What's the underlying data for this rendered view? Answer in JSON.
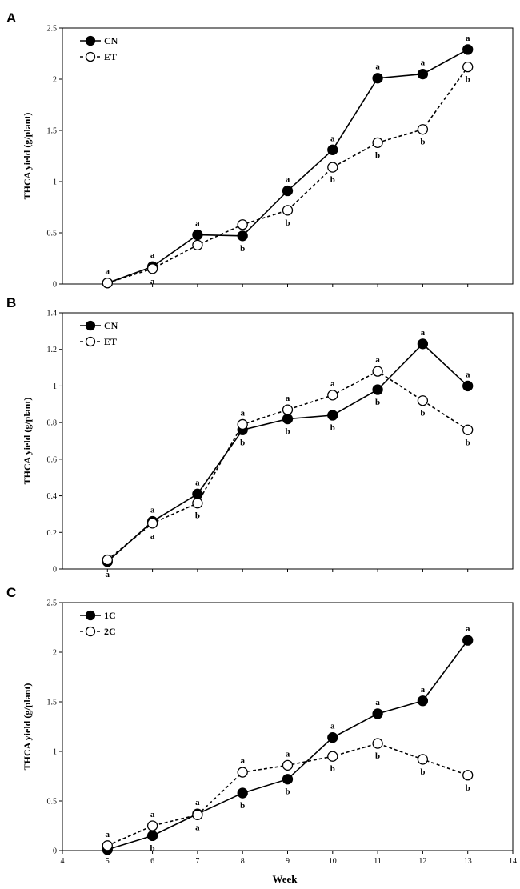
{
  "xlabel": "Week",
  "chart_data": [
    {
      "panel": "A",
      "type": "line",
      "ylabel": "THCA yield (g/plant)",
      "ylim": [
        0,
        2.5
      ],
      "yticks": [
        "0",
        "0.5",
        "1",
        "1.5",
        "2",
        "2.5"
      ],
      "xlim": [
        4,
        14
      ],
      "show_x_ticks": false,
      "legend_position": "top-left",
      "x": [
        5,
        6,
        7,
        8,
        9,
        10,
        11,
        12,
        13
      ],
      "series": [
        {
          "name": "CN",
          "style": "solid",
          "marker": "filled",
          "values": [
            0.01,
            0.17,
            0.48,
            0.47,
            0.91,
            1.31,
            2.01,
            2.05,
            2.29
          ],
          "labels": [
            "a",
            "a",
            "a",
            "b",
            "a",
            "a",
            "a",
            "a",
            "a"
          ]
        },
        {
          "name": "ET",
          "style": "dashed",
          "marker": "open",
          "values": [
            0.01,
            0.15,
            0.38,
            0.58,
            0.72,
            1.14,
            1.38,
            1.51,
            2.12
          ],
          "labels": [
            "",
            "a",
            "",
            "",
            "b",
            "b",
            "b",
            "b",
            "b"
          ]
        }
      ]
    },
    {
      "panel": "B",
      "type": "line",
      "ylabel": "THCA yield (g/plant)",
      "ylim": [
        0,
        1.4
      ],
      "yticks": [
        "0",
        "0.2",
        "0.4",
        "0.6",
        "0.8",
        "1",
        "1.2",
        "1.4"
      ],
      "xlim": [
        4,
        14
      ],
      "show_x_ticks": false,
      "legend_position": "top-left",
      "x": [
        5,
        6,
        7,
        8,
        9,
        10,
        11,
        12,
        13
      ],
      "series": [
        {
          "name": "CN",
          "style": "solid",
          "marker": "filled",
          "values": [
            0.04,
            0.26,
            0.41,
            0.76,
            0.82,
            0.84,
            0.98,
            1.23,
            1.0
          ],
          "labels": [
            "a",
            "a",
            "a",
            "b",
            "b",
            "b",
            "b",
            "a",
            "a"
          ]
        },
        {
          "name": "ET",
          "style": "dashed",
          "marker": "open",
          "values": [
            0.05,
            0.25,
            0.36,
            0.79,
            0.87,
            0.95,
            1.08,
            0.92,
            0.76
          ],
          "labels": [
            "",
            "a",
            "b",
            "a",
            "a",
            "a",
            "a",
            "b",
            "b"
          ]
        }
      ]
    },
    {
      "panel": "C",
      "type": "line",
      "ylabel": "THCA yield (g/plant)",
      "ylim": [
        0,
        2.5
      ],
      "yticks": [
        "0",
        "0.5",
        "1",
        "1.5",
        "2",
        "2.5"
      ],
      "xlim": [
        4,
        14
      ],
      "show_x_ticks": true,
      "xticks": [
        "4",
        "5",
        "6",
        "7",
        "8",
        "9",
        "10",
        "11",
        "12",
        "13",
        "14"
      ],
      "legend_position": "top-left",
      "x": [
        5,
        6,
        7,
        8,
        9,
        10,
        11,
        12,
        13
      ],
      "series": [
        {
          "name": "1C",
          "style": "solid",
          "marker": "filled",
          "values": [
            0.01,
            0.15,
            0.37,
            0.58,
            0.72,
            1.14,
            1.38,
            1.51,
            2.12
          ],
          "labels": [
            "",
            "b",
            "a",
            "b",
            "b",
            "a",
            "a",
            "a",
            "a"
          ]
        },
        {
          "name": "2C",
          "style": "dashed",
          "marker": "open",
          "values": [
            0.05,
            0.25,
            0.36,
            0.79,
            0.86,
            0.95,
            1.08,
            0.92,
            0.76
          ],
          "labels": [
            "a",
            "a",
            "a",
            "a",
            "a",
            "b",
            "b",
            "b",
            "b"
          ]
        }
      ]
    }
  ]
}
